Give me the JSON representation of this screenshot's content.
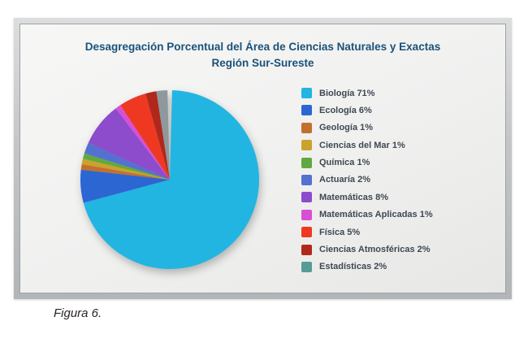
{
  "figure_caption": "Figura 6.",
  "chart": {
    "title_line1": "Desagregación Porcentual del Área de Ciencias Naturales y Exactas",
    "title_line2": "Región Sur-Sureste",
    "title_color": "#1A527A",
    "legend_text_color": "#3E4852",
    "panel_background": "#F0F0EF",
    "frame_color": "#BFC1C3"
  },
  "chart_data": {
    "type": "pie",
    "title": "Desagregación Porcentual del Área de Ciencias Naturales y Exactas",
    "subtitle": "Región Sur-Sureste",
    "legend_position": "right",
    "start_angle_deg": 0,
    "direction": "clockwise",
    "slices": [
      {
        "label": "Biología",
        "value": 71,
        "color": "#22B5E2"
      },
      {
        "label": "Ecología",
        "value": 6,
        "color": "#2C66D3"
      },
      {
        "label": "Geología",
        "value": 1,
        "color": "#C3702F"
      },
      {
        "label": "Ciencias del Mar",
        "value": 1,
        "color": "#C9A32B"
      },
      {
        "label": "Química",
        "value": 1,
        "color": "#60A940"
      },
      {
        "label": "Actuaría",
        "value": 2,
        "color": "#5470D0"
      },
      {
        "label": "Matemáticas",
        "value": 8,
        "color": "#8C4CCB"
      },
      {
        "label": "Matemáticas Aplicadas",
        "value": 1,
        "color": "#D84FD6"
      },
      {
        "label": "Física",
        "value": 5,
        "color": "#EE3822"
      },
      {
        "label": "Ciencias Atmosféricas",
        "value": 2,
        "color": "#B0281C"
      },
      {
        "label": "Estadísticas",
        "value": 2,
        "color": "#579B97",
        "pie_color": "#8E999C"
      }
    ]
  }
}
